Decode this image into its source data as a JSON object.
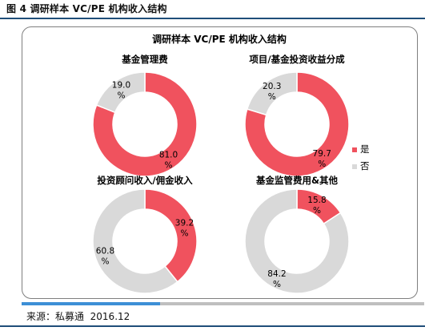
{
  "figure": {
    "title": "图 4 调研样本 VC/PE 机构收入结构"
  },
  "source": {
    "label": "来源：私募通",
    "date": "2016.12"
  },
  "colors": {
    "yes": "#f0525e",
    "no": "#d9d9d9"
  },
  "legend": {
    "yes": "是",
    "no": "否"
  },
  "chart_data": {
    "type": "pie",
    "title": "调研样本 VC/PE 机构收入结构",
    "legend_position": "right",
    "categories": [
      "是",
      "否"
    ],
    "charts": [
      {
        "title": "基金管理费",
        "values": [
          81.0,
          19.0
        ],
        "labels": [
          "81.0",
          "19.0"
        ]
      },
      {
        "title": "项目/基金投资收益分成",
        "values": [
          79.7,
          20.3
        ],
        "labels": [
          "79.7",
          "20.3"
        ]
      },
      {
        "title": "投资顾问收入/佣金收入",
        "values": [
          39.2,
          60.8
        ],
        "labels": [
          "39.2",
          "60.8"
        ]
      },
      {
        "title": "基金监管费用&其他",
        "values": [
          15.8,
          84.2
        ],
        "labels": [
          "15.8",
          "84.2"
        ]
      }
    ]
  }
}
